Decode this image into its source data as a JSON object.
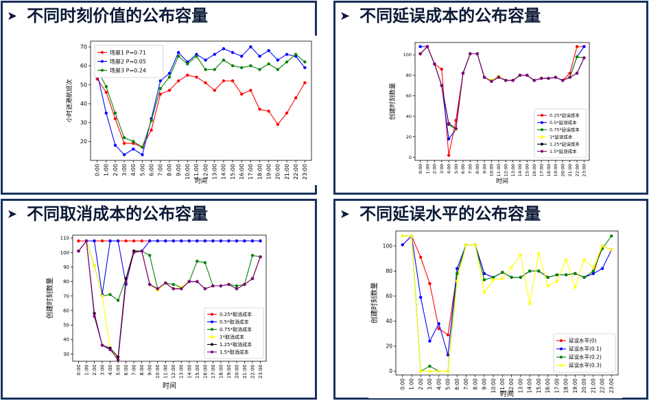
{
  "panels": [
    {
      "title": "不同时刻价值的公布容量"
    },
    {
      "title": "不同延误成本的公布容量"
    },
    {
      "title": "不同取消成本的公布容量"
    },
    {
      "title": "不同延误水平的公布容量"
    }
  ],
  "chart_data": [
    {
      "type": "line",
      "title": "",
      "xlabel": "时间",
      "ylabel": "小时进港航班次",
      "categories": [
        "0:00",
        "1:00",
        "2:00",
        "3:00",
        "4:00",
        "5:00",
        "6:00",
        "7:00",
        "8:00",
        "9:00",
        "10:00",
        "11:00",
        "12:00",
        "13:00",
        "14:00",
        "15:00",
        "16:00",
        "17:00",
        "18:00",
        "19:00",
        "20:00",
        "21:00",
        "22:00",
        "23:00"
      ],
      "ylim": [
        10,
        73
      ],
      "yticks": [
        20,
        30,
        40,
        50,
        60,
        70
      ],
      "legend_position": "top-left",
      "series": [
        {
          "name": "场景1 P=0.71",
          "color": "#ff0000",
          "values": [
            53,
            46,
            32,
            19,
            19,
            17,
            26,
            45,
            47,
            52,
            55,
            54,
            51,
            47,
            52,
            52,
            45,
            47,
            37,
            36,
            29,
            35,
            43,
            51
          ]
        },
        {
          "name": "场景2 P=0.05",
          "color": "#0000ff",
          "values": [
            56,
            35,
            18,
            13,
            16,
            13,
            32,
            52,
            56,
            67,
            62,
            66,
            63,
            66,
            69,
            67,
            65,
            70,
            65,
            68,
            63,
            66,
            65,
            59
          ]
        },
        {
          "name": "场景3 P=0.24",
          "color": "#008000",
          "values": [
            58,
            49,
            35,
            22,
            20,
            17,
            31,
            48,
            54,
            65,
            61,
            65,
            58,
            58,
            63,
            60,
            59,
            60,
            58,
            61,
            58,
            62,
            66,
            62
          ]
        }
      ]
    },
    {
      "type": "line",
      "title": "",
      "xlabel": "时间",
      "ylabel": "创建时刻数量",
      "categories": [
        "0:00",
        "1:00",
        "2:00",
        "3:00",
        "4:00",
        "5:00",
        "6:00",
        "7:00",
        "8:00",
        "9:00",
        "10:00",
        "11:00",
        "12:00",
        "13:00",
        "14:00",
        "15:00",
        "16:00",
        "17:00",
        "18:00",
        "19:00",
        "20:00",
        "21:00",
        "22:00",
        "23:00"
      ],
      "ylim": [
        -3,
        112
      ],
      "yticks": [
        0,
        20,
        40,
        60,
        80,
        100
      ],
      "legend_position": "lower-right",
      "series": [
        {
          "name": "0.25*延误成本",
          "color": "#ff0000",
          "values": [
            101,
            108,
            91,
            86,
            2,
            36,
            82,
            101,
            101,
            78,
            75,
            79,
            75,
            75,
            80,
            80,
            75,
            77,
            77,
            78,
            75,
            82,
            108,
            108
          ]
        },
        {
          "name": "0.5*延误成本",
          "color": "#0000ff",
          "values": [
            108,
            108,
            91,
            70,
            18,
            27,
            82,
            101,
            101,
            78,
            75,
            79,
            75,
            75,
            80,
            80,
            75,
            77,
            77,
            78,
            75,
            78,
            98,
            108
          ]
        },
        {
          "name": "0.75*延误成本",
          "color": "#008000",
          "values": [
            101,
            108,
            91,
            70,
            32,
            27,
            82,
            101,
            101,
            78,
            75,
            79,
            75,
            75,
            80,
            80,
            75,
            77,
            77,
            78,
            75,
            78,
            98,
            97
          ]
        },
        {
          "name": "1*延误成本",
          "color": "#ffff00",
          "values": [
            101,
            108,
            91,
            70,
            33,
            27,
            82,
            101,
            101,
            78,
            75,
            79,
            75,
            75,
            80,
            80,
            75,
            77,
            77,
            78,
            75,
            78,
            82,
            97
          ]
        },
        {
          "name": "1.25*延误成本",
          "color": "#000000",
          "values": [
            101,
            108,
            91,
            70,
            33,
            28,
            82,
            101,
            101,
            78,
            74,
            78,
            75,
            75,
            80,
            80,
            75,
            77,
            77,
            78,
            75,
            78,
            82,
            97
          ]
        },
        {
          "name": "1.5*延误成本",
          "color": "#800080",
          "values": [
            101,
            108,
            91,
            70,
            33,
            28,
            82,
            101,
            101,
            78,
            74,
            78,
            75,
            75,
            80,
            80,
            75,
            77,
            77,
            78,
            75,
            78,
            82,
            97
          ]
        }
      ]
    },
    {
      "type": "line",
      "title": "",
      "xlabel": "时间",
      "ylabel": "创建时刻数量",
      "categories": [
        "0:00",
        "1:00",
        "2:00",
        "3:00",
        "4:00",
        "5:00",
        "6:00",
        "7:00",
        "8:00",
        "9:00",
        "10:00",
        "11:00",
        "12:00",
        "13:00",
        "14:00",
        "15:00",
        "16:00",
        "17:00",
        "18:00",
        "19:00",
        "20:00",
        "21:00",
        "22:00",
        "23:00"
      ],
      "ylim": [
        25,
        112
      ],
      "yticks": [
        30,
        40,
        50,
        60,
        70,
        80,
        90,
        100,
        110
      ],
      "legend_position": "lower-right",
      "series": [
        {
          "name": "0.25*取消成本",
          "color": "#ff0000",
          "values": [
            108,
            108,
            108,
            108,
            108,
            108,
            108,
            108,
            108,
            108,
            108,
            108,
            108,
            108,
            108,
            108,
            108,
            108,
            108,
            108,
            108,
            108,
            108,
            108
          ]
        },
        {
          "name": "0.5*取消成本",
          "color": "#0000ff",
          "values": [
            101,
            108,
            108,
            71,
            108,
            108,
            78,
            101,
            101,
            108,
            108,
            108,
            108,
            108,
            108,
            108,
            108,
            108,
            108,
            108,
            108,
            108,
            108,
            108
          ]
        },
        {
          "name": "0.75*取消成本",
          "color": "#008000",
          "values": [
            101,
            108,
            91,
            70,
            71,
            67,
            82,
            101,
            101,
            98,
            75,
            79,
            78,
            76,
            80,
            94,
            93,
            77,
            77,
            78,
            77,
            78,
            98,
            97
          ]
        },
        {
          "name": "1*取消成本",
          "color": "#ffff00",
          "values": [
            101,
            108,
            91,
            70,
            34,
            27,
            82,
            101,
            101,
            78,
            74,
            79,
            75,
            76,
            80,
            80,
            75,
            77,
            77,
            78,
            75,
            78,
            82,
            97
          ]
        },
        {
          "name": "1.25*取消成本",
          "color": "#000000",
          "values": [
            101,
            108,
            58,
            36,
            34,
            28,
            82,
            101,
            101,
            78,
            75,
            79,
            75,
            75,
            80,
            80,
            75,
            77,
            77,
            78,
            75,
            78,
            82,
            97
          ]
        },
        {
          "name": "1.5*取消成本",
          "color": "#800080",
          "values": [
            101,
            108,
            56,
            36,
            33,
            26,
            79,
            100,
            101,
            78,
            75,
            79,
            75,
            75,
            80,
            80,
            75,
            77,
            77,
            78,
            75,
            78,
            82,
            97
          ]
        }
      ]
    },
    {
      "type": "line",
      "title": "",
      "xlabel": "时间",
      "ylabel": "创建时刻数量",
      "categories": [
        "0:00",
        "1:00",
        "2:00",
        "3:00",
        "4:00",
        "5:00",
        "6:00",
        "7:00",
        "8:00",
        "9:00",
        "10:00",
        "11:00",
        "12:00",
        "13:00",
        "14:00",
        "15:00",
        "16:00",
        "17:00",
        "18:00",
        "19:00",
        "20:00",
        "21:00",
        "22:00",
        "23:00"
      ],
      "ylim": [
        -3,
        112
      ],
      "yticks": [
        0,
        20,
        40,
        60,
        80,
        100
      ],
      "legend_position": "lower-right",
      "series": [
        {
          "name": "延误水平(0)",
          "color": "#ff0000",
          "values": [
            101,
            108,
            91,
            70,
            34,
            29,
            78,
            101,
            101,
            78,
            75,
            79,
            75,
            75,
            80,
            80,
            75,
            77,
            77,
            78,
            75,
            78,
            100,
            97
          ]
        },
        {
          "name": "延误水平(0.1)",
          "color": "#0000ff",
          "values": [
            101,
            108,
            59,
            24,
            38,
            13,
            82,
            101,
            101,
            78,
            75,
            79,
            75,
            75,
            80,
            80,
            75,
            77,
            77,
            78,
            75,
            78,
            82,
            97
          ]
        },
        {
          "name": "延误水平(0.2)",
          "color": "#008000",
          "values": [
            108,
            108,
            0,
            4,
            0,
            0,
            78,
            101,
            101,
            73,
            75,
            79,
            75,
            75,
            80,
            80,
            75,
            77,
            77,
            78,
            75,
            80,
            98,
            108
          ]
        },
        {
          "name": "延误水平(0.3)",
          "color": "#ffff00",
          "values": [
            108,
            108,
            0,
            0,
            0,
            0,
            72,
            101,
            101,
            63,
            73,
            74,
            83,
            93,
            54,
            94,
            68,
            72,
            89,
            67,
            89,
            83,
            100,
            97
          ]
        }
      ]
    }
  ]
}
